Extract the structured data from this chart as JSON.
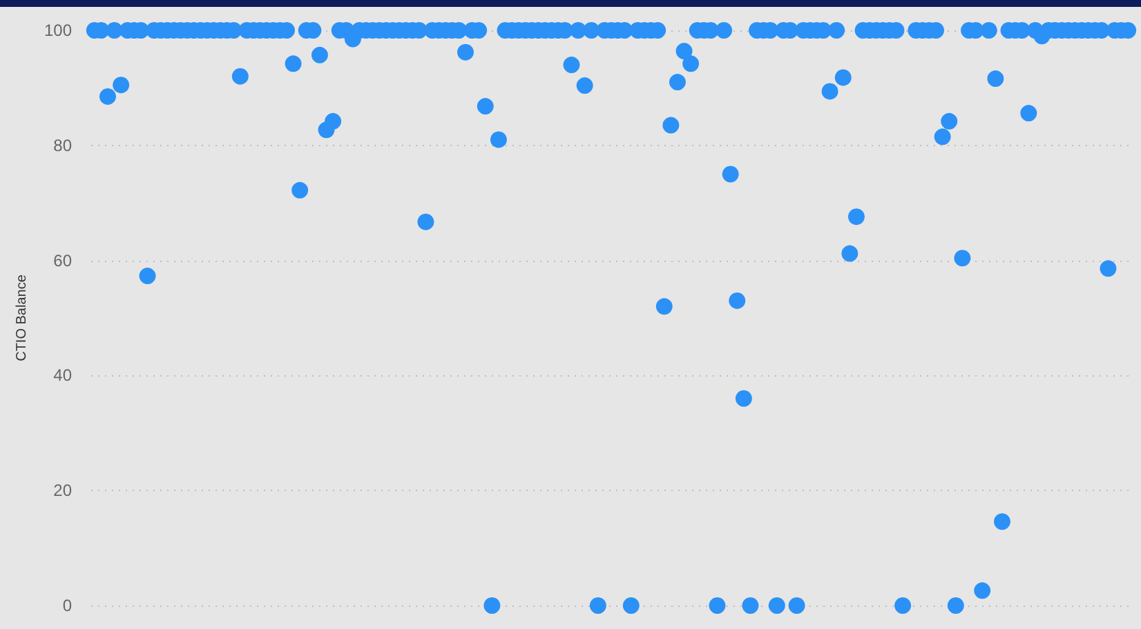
{
  "chart_data": {
    "type": "scatter",
    "ylabel": "CTIO Balance",
    "categories": [
      null,
      null,
      null,
      null,
      null,
      null,
      null,
      null,
      null,
      null,
      null,
      null,
      null,
      null,
      null,
      null,
      null,
      null,
      null,
      null,
      null,
      null,
      null,
      null,
      null,
      null,
      null,
      null,
      null,
      null,
      null,
      null,
      null,
      null,
      null,
      null,
      null,
      null,
      null,
      null,
      null,
      null,
      null,
      null,
      null,
      null,
      null,
      null,
      null,
      null,
      null,
      null,
      null,
      null,
      null,
      null,
      null,
      null,
      null,
      null,
      null,
      null,
      null,
      null,
      null,
      null,
      null,
      null,
      null,
      null,
      null,
      null,
      null,
      null,
      null,
      null,
      null,
      null,
      null,
      null,
      null,
      null,
      null,
      null,
      null,
      null,
      null,
      null,
      null,
      null,
      null,
      null,
      null,
      null,
      null,
      null,
      null,
      null,
      null,
      null,
      null,
      null,
      null,
      null,
      null,
      null,
      null,
      null,
      null,
      null,
      null,
      null,
      null,
      null,
      null,
      null,
      null,
      null,
      null,
      null,
      null,
      null,
      null,
      null,
      null,
      null,
      null,
      null,
      null,
      null,
      null,
      null,
      null,
      null,
      null,
      null,
      null,
      null,
      null,
      null,
      null,
      null,
      null,
      null,
      null,
      null,
      null,
      null,
      null,
      null,
      null,
      null,
      null,
      null,
      null,
      null,
      null
    ],
    "values": [
      100,
      100,
      88.5,
      100,
      90.5,
      100,
      100,
      100,
      57.3,
      100,
      100,
      100,
      100,
      100,
      100,
      100,
      100,
      100,
      100,
      100,
      100,
      100,
      92,
      100,
      100,
      100,
      100,
      100,
      100,
      100,
      94.2,
      72.2,
      100,
      100,
      95.7,
      82.7,
      84.2,
      100,
      100,
      98.5,
      100,
      100,
      100,
      100,
      100,
      100,
      100,
      100,
      100,
      100,
      66.7,
      100,
      100,
      100,
      100,
      100,
      96.2,
      100,
      100,
      86.8,
      0,
      81,
      100,
      100,
      100,
      100,
      100,
      100,
      100,
      100,
      100,
      100,
      94,
      100,
      90.4,
      100,
      0,
      100,
      100,
      100,
      100,
      0,
      100,
      100,
      100,
      100,
      52,
      83.5,
      91,
      96.4,
      94.2,
      100,
      100,
      100,
      0,
      100,
      75,
      53,
      36,
      0,
      100,
      100,
      100,
      0,
      100,
      100,
      0,
      100,
      100,
      100,
      100,
      89.4,
      100,
      91.8,
      61.2,
      67.6,
      100,
      100,
      100,
      100,
      100,
      100,
      0,
      null,
      100,
      100,
      100,
      100,
      81.5,
      84.2,
      0,
      60.4,
      100,
      100,
      2.6,
      100,
      91.6,
      14.6,
      100,
      100,
      100,
      85.6,
      100,
      99,
      100,
      100,
      100,
      100,
      100,
      100,
      100,
      100,
      100,
      58.6,
      100,
      100,
      100
    ],
    "color": "#2b91f6",
    "marker": "circle",
    "ylim": [
      0,
      100
    ],
    "yticks": [
      0,
      20,
      40,
      60,
      80,
      100
    ],
    "grid": "y",
    "tick_labels": "y"
  }
}
